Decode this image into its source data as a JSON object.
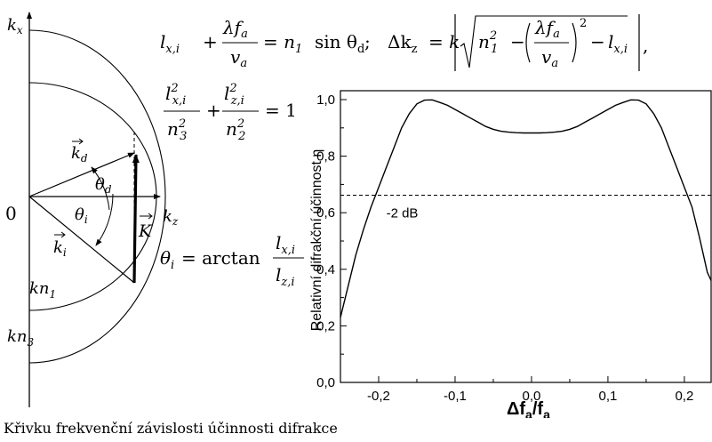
{
  "caption": "Křivku frekvenční závislosti účinnosti difrakce",
  "vector_diagram": {
    "origin_label": "0",
    "kx_label": "k",
    "kx_sub": "x",
    "kz_label": "k",
    "kz_sub": "z",
    "kd_label": "k",
    "kd_sub": "d",
    "ki_label": "k",
    "ki_sub": "i",
    "K_label": "K",
    "theta_d_label": "θ",
    "theta_d_sub": "d",
    "theta_i_label": "θ",
    "theta_i_sub": "i",
    "kn1_label": "kn",
    "kn1_sub": "1",
    "kn3_label": "kn",
    "kn3_sub": "3"
  },
  "equations": {
    "eq1_prefix": "l",
    "eq1_sub": "x,i",
    "eq1_plus": "+",
    "eq1_num": "λf",
    "eq1_num_sub": "a",
    "eq1_den": "v",
    "eq1_den_sub": "a",
    "eq1_rhs": "= n",
    "eq1_rhs_sub": "1",
    "eq1_rhs_tail": "sin θ",
    "eq1_rhs_tail_sub": "d",
    "eq1_semicolon": ";",
    "eq2_lhs": "Δk",
    "eq2_lhs_sub": "z",
    "eq2_eq": "= k",
    "eq2_n": "n",
    "eq2_n_sub": "1",
    "eq2_n_sup": "2",
    "eq2_minus": "−",
    "eq2_num": "λf",
    "eq2_num_sub": "a",
    "eq2_den": "v",
    "eq2_den_sub": "a",
    "eq2_sup": "2",
    "eq2_minus2": "−",
    "eq2_l": "l",
    "eq2_l_sub": "x,i",
    "eq2_comma": ",",
    "ellipse_num1": "l",
    "ellipse_num1_sub": "x,i",
    "ellipse_num1_sup": "2",
    "ellipse_den1": "n",
    "ellipse_den1_sub": "3",
    "ellipse_den1_sup": "2",
    "ellipse_plus": "+",
    "ellipse_num2": "l",
    "ellipse_num2_sub": "z,i",
    "ellipse_num2_sup": "2",
    "ellipse_den2": "n",
    "ellipse_den2_sub": "2",
    "ellipse_den2_sup": "2",
    "ellipse_rhs": "= 1",
    "theta_lhs": "θ",
    "theta_lhs_sub": "i",
    "theta_eq": "= arctan",
    "theta_num": "l",
    "theta_num_sub": "x,i",
    "theta_den": "l",
    "theta_den_sub": "z,i"
  },
  "chart_data": {
    "type": "line",
    "ylabel": "Relativní difrakční účinnost η",
    "xlabel_main": "Δf",
    "xlabel_sub": "a",
    "xlabel_sep": "/f",
    "xlabel_sub2": "a",
    "xlim": [
      -0.25,
      0.235
    ],
    "ylim": [
      0.0,
      1.0
    ],
    "x_ticks": [
      "-0,2",
      "-0,1",
      "0,0",
      "0,1",
      "0,2"
    ],
    "x_tick_values": [
      -0.2,
      -0.1,
      0.0,
      0.1,
      0.2
    ],
    "y_ticks": [
      "0,0",
      "0,2",
      "0,4",
      "0,6",
      "0,8",
      "1,0"
    ],
    "y_tick_values": [
      0.0,
      0.2,
      0.4,
      0.6,
      0.8,
      1.0
    ],
    "threshold": {
      "value": 0.662,
      "label": "-2 dB"
    },
    "series": [
      {
        "x": [
          -0.25,
          -0.24,
          -0.23,
          -0.22,
          -0.21,
          -0.2,
          -0.19,
          -0.18,
          -0.17,
          -0.16,
          -0.15,
          -0.14,
          -0.13,
          -0.12,
          -0.11,
          -0.1,
          -0.09,
          -0.08,
          -0.07,
          -0.06,
          -0.05,
          -0.04,
          -0.03,
          -0.02,
          -0.01,
          0.0,
          0.01,
          0.02,
          0.03,
          0.04,
          0.05,
          0.06,
          0.07,
          0.08,
          0.09,
          0.1,
          0.11,
          0.12,
          0.13,
          0.14,
          0.15,
          0.16,
          0.17,
          0.18,
          0.19,
          0.2,
          0.21,
          0.22,
          0.23,
          0.235
        ],
        "y": [
          0.23,
          0.34,
          0.45,
          0.54,
          0.62,
          0.69,
          0.76,
          0.83,
          0.9,
          0.95,
          0.985,
          0.998,
          0.999,
          0.99,
          0.98,
          0.965,
          0.95,
          0.935,
          0.92,
          0.905,
          0.895,
          0.888,
          0.885,
          0.883,
          0.882,
          0.882,
          0.882,
          0.883,
          0.885,
          0.888,
          0.895,
          0.905,
          0.92,
          0.935,
          0.95,
          0.965,
          0.98,
          0.99,
          0.999,
          0.998,
          0.985,
          0.95,
          0.9,
          0.83,
          0.76,
          0.69,
          0.62,
          0.51,
          0.39,
          0.36
        ]
      }
    ]
  }
}
